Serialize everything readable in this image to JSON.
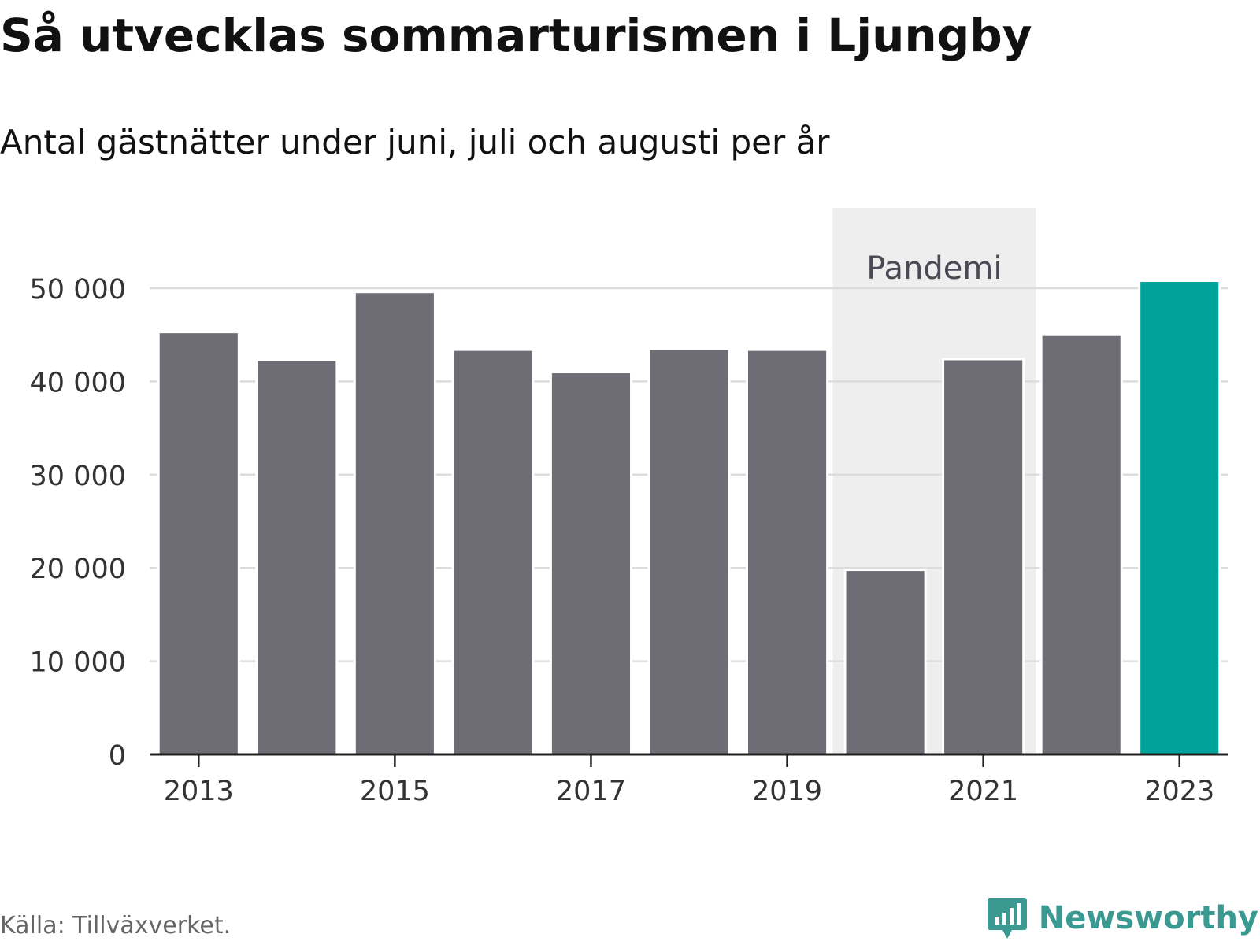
{
  "title": "Så utvecklas sommarturismen i Ljungby",
  "subtitle": "Antal gästnätter under juni, juli och augusti per år",
  "source": "Källa: Tillväxverket.",
  "brand": {
    "name": "Newsworthy",
    "icon": "newsworthy-logo-icon",
    "color": "#3a9a91"
  },
  "chart_data": {
    "type": "bar",
    "categories": [
      "2013",
      "2014",
      "2015",
      "2016",
      "2017",
      "2018",
      "2019",
      "2020",
      "2021",
      "2022",
      "2023"
    ],
    "values": [
      45300,
      42300,
      49600,
      43400,
      41000,
      43500,
      43400,
      19800,
      42400,
      45000,
      50800
    ],
    "x_tick_labels": [
      "2013",
      "2015",
      "2017",
      "2019",
      "2021",
      "2023"
    ],
    "y_ticks": [
      0,
      10000,
      20000,
      30000,
      40000,
      50000
    ],
    "y_tick_labels": [
      "0",
      "10 000",
      "20 000",
      "30 000",
      "40 000",
      "50 000"
    ],
    "ylim": [
      0,
      58000
    ],
    "grid": true,
    "highlight": {
      "category": "2023",
      "color": "#00a29a"
    },
    "bar_color": "#6e6d75",
    "annotation": {
      "label": "Pandemi",
      "from": "2020",
      "to": "2021",
      "color": "#eeeeee"
    },
    "xlabel": "",
    "ylabel": ""
  }
}
